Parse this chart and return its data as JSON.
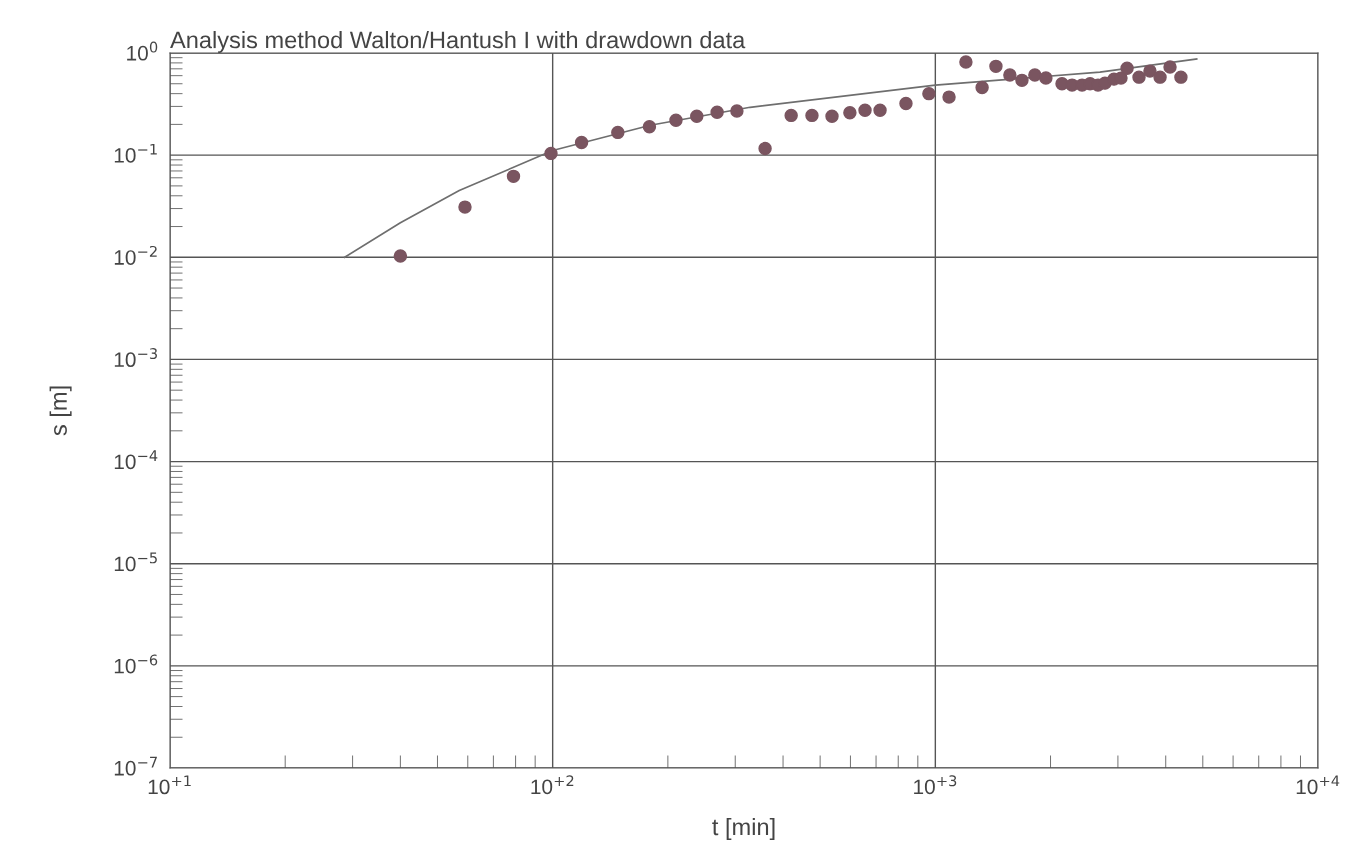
{
  "chart_data": {
    "type": "scatter",
    "title": "Analysis method Walton/Hantush I with drawdown data",
    "xlabel": "t [min]",
    "ylabel": "s [m]",
    "log": "xy",
    "grid": true,
    "marker": "circle",
    "xlim": [
      10,
      10000
    ],
    "xticks": [
      {
        "value": 10,
        "label": "10$^{+1}$"
      },
      {
        "value": 100,
        "label": "10$^{+2}$"
      },
      {
        "value": 1000,
        "label": "10$^{+3}$"
      },
      {
        "value": 10000,
        "label": "10$^{+4}$"
      }
    ],
    "ylim": [
      1e-07,
      1
    ],
    "yticks": [
      {
        "value": 1e-07,
        "label": "10$^{−7}$"
      },
      {
        "value": 1e-06,
        "label": "10$^{−6}$"
      },
      {
        "value": 1e-05,
        "label": "10$^{−5}$"
      },
      {
        "value": 0.0001,
        "label": "10$^{−4}$"
      },
      {
        "value": 0.001,
        "label": "10$^{−3}$"
      },
      {
        "value": 0.01,
        "label": "10$^{−2}$"
      },
      {
        "value": 0.1,
        "label": "10$^{−1}$"
      },
      {
        "value": 1,
        "label": "10$^{0}$"
      }
    ],
    "series": [
      {
        "color": "#7a5560",
        "x": [
          40,
          59,
          79,
          99,
          119,
          148,
          179,
          210,
          238,
          269,
          303,
          359,
          420,
          476,
          537,
          598,
          655,
          717,
          838,
          962,
          1086,
          1202,
          1325,
          1440,
          1566,
          1684,
          1820,
          1945,
          2143,
          2277,
          2418,
          2537,
          2661,
          2775,
          2930,
          3056,
          3170,
          3406,
          3638,
          3866,
          4105,
          4383
        ],
        "values": [
          0.0103,
          0.031,
          0.062,
          0.104,
          0.133,
          0.167,
          0.19,
          0.22,
          0.24,
          0.263,
          0.27,
          0.116,
          0.245,
          0.245,
          0.24,
          0.26,
          0.275,
          0.275,
          0.32,
          0.4,
          0.37,
          0.815,
          0.46,
          0.74,
          0.61,
          0.54,
          0.61,
          0.57,
          0.5,
          0.485,
          0.485,
          0.5,
          0.485,
          0.507,
          0.555,
          0.568,
          0.71,
          0.58,
          0.665,
          0.58,
          0.73,
          0.58
        ]
      },
      {
        "type": "line",
        "color": "#6e6e6e",
        "marker": "none",
        "x": [
          28.6,
          40,
          57,
          100,
          180,
          328,
          1000,
          2692,
          4820
        ],
        "values": [
          0.01,
          0.0218,
          0.045,
          0.111,
          0.196,
          0.294,
          0.485,
          0.65,
          0.873
        ]
      }
    ]
  }
}
